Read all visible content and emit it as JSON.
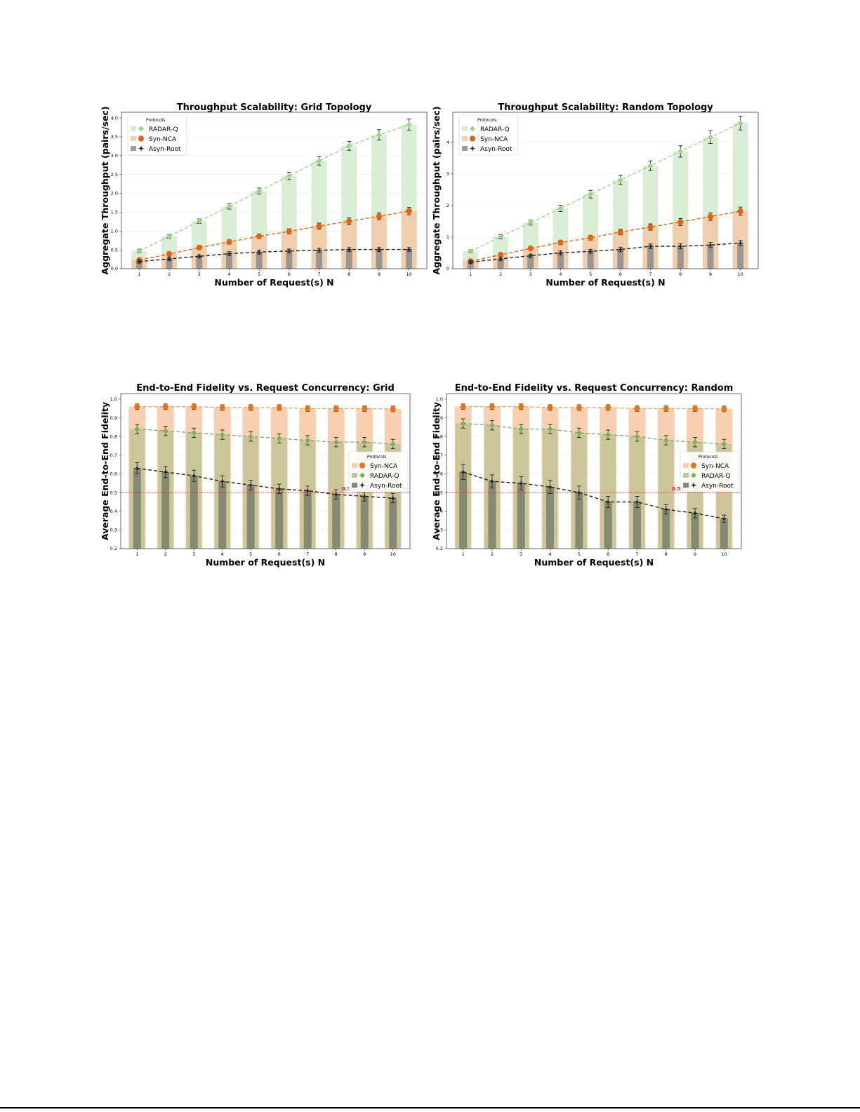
{
  "chart_data": [
    {
      "id": "tp-grid",
      "type": "bar",
      "title": "Throughput Scalability: Grid Topology",
      "xlabel": "Number of Request(s) N",
      "ylabel": "Aggregate Throughput (pairs/sec)",
      "categories": [
        "1",
        "2",
        "3",
        "4",
        "5",
        "6",
        "7",
        "8",
        "9",
        "10"
      ],
      "ylim": [
        0,
        4.15
      ],
      "yticks": [
        "0.0",
        "0.5",
        "1.0",
        "1.5",
        "2.0",
        "2.5",
        "3.0",
        "3.5",
        "4.0"
      ],
      "legend": {
        "title": "Protocols",
        "position": "upper-left"
      },
      "series": [
        {
          "name": "RADAR-Q",
          "color": "#9ed28c",
          "marker": "diamond",
          "values": [
            0.47,
            0.86,
            1.26,
            1.65,
            2.06,
            2.46,
            2.86,
            3.26,
            3.55,
            3.82
          ],
          "errors": [
            0.05,
            0.05,
            0.06,
            0.07,
            0.08,
            0.1,
            0.11,
            0.12,
            0.14,
            0.15
          ]
        },
        {
          "name": "Syn-NCA",
          "color": "#e66a1a",
          "marker": "circle",
          "values": [
            0.23,
            0.39,
            0.56,
            0.71,
            0.86,
            0.99,
            1.13,
            1.26,
            1.39,
            1.53
          ],
          "errors": [
            0.04,
            0.04,
            0.05,
            0.05,
            0.06,
            0.07,
            0.08,
            0.09,
            0.09,
            0.1
          ]
        },
        {
          "name": "Asyn-Root",
          "color": "#333333",
          "marker": "star",
          "values": [
            0.19,
            0.26,
            0.33,
            0.4,
            0.44,
            0.47,
            0.49,
            0.51,
            0.51,
            0.51
          ],
          "errors": [
            0.04,
            0.04,
            0.04,
            0.05,
            0.05,
            0.05,
            0.05,
            0.05,
            0.05,
            0.05
          ]
        }
      ]
    },
    {
      "id": "tp-random",
      "type": "bar",
      "title": "Throughput Scalability: Random Topology",
      "xlabel": "Number of Request(s) N",
      "ylabel": "Aggregate Throughput (pairs/sec)",
      "categories": [
        "1",
        "2",
        "3",
        "4",
        "5",
        "6",
        "7",
        "8",
        "9",
        "10"
      ],
      "ylim": [
        0,
        4.95
      ],
      "yticks": [
        "0",
        "1",
        "2",
        "3",
        "4"
      ],
      "legend": {
        "title": "Protocols",
        "position": "upper-left"
      },
      "series": [
        {
          "name": "RADAR-Q",
          "color": "#9ed28c",
          "marker": "diamond",
          "values": [
            0.55,
            1.01,
            1.46,
            1.91,
            2.36,
            2.81,
            3.26,
            3.71,
            4.16,
            4.61
          ],
          "errors": [
            0.05,
            0.07,
            0.08,
            0.1,
            0.12,
            0.14,
            0.15,
            0.18,
            0.2,
            0.22
          ]
        },
        {
          "name": "Syn-NCA",
          "color": "#e66a1a",
          "marker": "circle",
          "values": [
            0.24,
            0.44,
            0.64,
            0.83,
            0.98,
            1.16,
            1.32,
            1.48,
            1.65,
            1.82
          ],
          "errors": [
            0.04,
            0.05,
            0.06,
            0.07,
            0.08,
            0.09,
            0.1,
            0.11,
            0.12,
            0.13
          ]
        },
        {
          "name": "Asyn-Root",
          "color": "#333333",
          "marker": "star",
          "values": [
            0.21,
            0.31,
            0.41,
            0.5,
            0.55,
            0.61,
            0.71,
            0.71,
            0.75,
            0.81
          ],
          "errors": [
            0.04,
            0.05,
            0.05,
            0.06,
            0.06,
            0.07,
            0.07,
            0.08,
            0.08,
            0.08
          ]
        }
      ]
    },
    {
      "id": "fid-grid",
      "type": "bar",
      "title": "End-to-End Fidelity vs. Request Concurrency: Grid",
      "xlabel": "Number of Request(s) N",
      "ylabel": "Average End-to-End Fidelity",
      "categories": [
        "1",
        "2",
        "3",
        "4",
        "5",
        "6",
        "7",
        "8",
        "9",
        "10"
      ],
      "ylim": [
        0.2,
        1.03
      ],
      "yticks": [
        "0.2",
        "0.3",
        "0.4",
        "0.5",
        "0.6",
        "0.7",
        "0.8",
        "0.9",
        "1.0"
      ],
      "reference_line": {
        "value": 0.5,
        "label": "0.5 D",
        "color": "#d62020"
      },
      "legend": {
        "title": "Protocols",
        "position": "center-right"
      },
      "series": [
        {
          "name": "Syn-NCA",
          "color": "#f5b990",
          "marker": "circle",
          "values": [
            0.96,
            0.96,
            0.96,
            0.955,
            0.955,
            0.955,
            0.95,
            0.95,
            0.95,
            0.948
          ],
          "errors": [
            0.015,
            0.015,
            0.015,
            0.015,
            0.015,
            0.015,
            0.015,
            0.015,
            0.015,
            0.015
          ]
        },
        {
          "name": "RADAR-Q",
          "color": "#8fb86e",
          "marker": "diamond",
          "values": [
            0.84,
            0.83,
            0.82,
            0.81,
            0.8,
            0.79,
            0.78,
            0.77,
            0.77,
            0.76
          ],
          "errors": [
            0.025,
            0.025,
            0.025,
            0.025,
            0.025,
            0.025,
            0.025,
            0.025,
            0.025,
            0.025
          ]
        },
        {
          "name": "Asyn-Root",
          "color": "#555555",
          "marker": "star",
          "values": [
            0.63,
            0.61,
            0.59,
            0.56,
            0.54,
            0.52,
            0.51,
            0.49,
            0.48,
            0.47
          ],
          "errors": [
            0.03,
            0.03,
            0.03,
            0.03,
            0.025,
            0.025,
            0.025,
            0.025,
            0.025,
            0.025
          ]
        }
      ]
    },
    {
      "id": "fid-random",
      "type": "bar",
      "title": "End-to-End Fidelity vs. Request Concurrency: Random",
      "xlabel": "Number of Request(s) N",
      "ylabel": "Average End-to-End Fidelity",
      "categories": [
        "1",
        "2",
        "3",
        "4",
        "5",
        "6",
        "7",
        "8",
        "9",
        "10"
      ],
      "ylim": [
        0.2,
        1.03
      ],
      "yticks": [
        "0.2",
        "0.3",
        "0.4",
        "0.5",
        "0.6",
        "0.7",
        "0.8",
        "0.9",
        "1.0"
      ],
      "reference_line": {
        "value": 0.5,
        "label": "0.5 D",
        "color": "#d62020"
      },
      "legend": {
        "title": "Protocols",
        "position": "center-right"
      },
      "series": [
        {
          "name": "Syn-NCA",
          "color": "#f5b990",
          "marker": "circle",
          "values": [
            0.96,
            0.96,
            0.96,
            0.955,
            0.955,
            0.955,
            0.95,
            0.95,
            0.95,
            0.948
          ],
          "errors": [
            0.015,
            0.015,
            0.015,
            0.015,
            0.015,
            0.015,
            0.015,
            0.015,
            0.015,
            0.015
          ]
        },
        {
          "name": "RADAR-Q",
          "color": "#8fb86e",
          "marker": "diamond",
          "values": [
            0.87,
            0.86,
            0.84,
            0.84,
            0.82,
            0.81,
            0.8,
            0.78,
            0.77,
            0.76
          ],
          "errors": [
            0.025,
            0.025,
            0.025,
            0.025,
            0.025,
            0.025,
            0.025,
            0.025,
            0.025,
            0.025
          ]
        },
        {
          "name": "Asyn-Root",
          "color": "#555555",
          "marker": "star",
          "values": [
            0.61,
            0.56,
            0.55,
            0.53,
            0.5,
            0.45,
            0.45,
            0.41,
            0.39,
            0.36
          ],
          "errors": [
            0.04,
            0.035,
            0.035,
            0.035,
            0.035,
            0.03,
            0.03,
            0.025,
            0.025,
            0.02
          ]
        }
      ]
    }
  ]
}
